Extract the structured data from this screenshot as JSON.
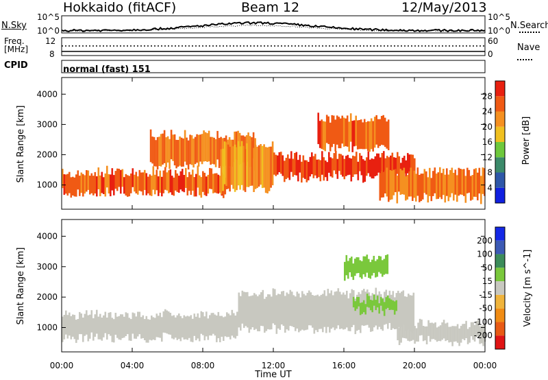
{
  "header": {
    "station": "Hokkaido (fitACF)",
    "beam": "Beam 12",
    "date": "12/May/2013"
  },
  "top_panels": {
    "nsky_label": "N.Sky",
    "nsky_ticks": [
      "10^5",
      "10^0"
    ],
    "nsearch_label": "N.Search",
    "nsearch_ticks": [
      "10^5",
      "10^0"
    ],
    "freq_label": "Freq.",
    "freq_unit": "[MHz]",
    "freq_ticks": [
      "12",
      "8"
    ],
    "nave_label": "Nave",
    "nave_ticks": [
      "60",
      "0"
    ],
    "cpid_label": "CPID",
    "cpid_value": "normal (fast) 151"
  },
  "colors": {
    "power_scale": [
      "#1020e0",
      "#2e57a8",
      "#3c8a6a",
      "#6ec83c",
      "#f0c020",
      "#f59020",
      "#f05a14",
      "#e82010"
    ],
    "velocity_scale": [
      "#1428e6",
      "#3c5ab4",
      "#3c8c5a",
      "#7ac83c",
      "#c8c8c0",
      "#f0b43c",
      "#f08c14",
      "#e85a14",
      "#e01414"
    ],
    "background_velocity": "#c8c8c0"
  },
  "chart_data": [
    {
      "type": "heatmap",
      "panel": "power",
      "ylabel": "Slant Range [km]",
      "y_ticks": [
        "1000",
        "2000",
        "3000",
        "4000"
      ],
      "ylim": [
        200,
        4550
      ],
      "xlim": [
        "00:00",
        "24:00"
      ],
      "colorbar_label": "Power [dB]",
      "colorbar_ticks": [
        "4",
        "8",
        "12",
        "16",
        "20",
        "24",
        "28"
      ],
      "colorbar_range": [
        0,
        32
      ],
      "regions": [
        {
          "from_h": 0.0,
          "to_h": 9.5,
          "range_km": [
            700,
            1500
          ],
          "dB": 26
        },
        {
          "from_h": 5.0,
          "to_h": 11.0,
          "range_km": [
            1600,
            2700
          ],
          "dB": 24
        },
        {
          "from_h": 9.0,
          "to_h": 12.0,
          "range_km": [
            800,
            2400
          ],
          "dB": 22
        },
        {
          "from_h": 12.0,
          "to_h": 20.0,
          "range_km": [
            1200,
            2000
          ],
          "dB": 28
        },
        {
          "from_h": 14.5,
          "to_h": 18.5,
          "range_km": [
            2200,
            3300
          ],
          "dB": 25
        },
        {
          "from_h": 18.0,
          "to_h": 24.0,
          "range_km": [
            500,
            1500
          ],
          "dB": 24
        }
      ]
    },
    {
      "type": "heatmap",
      "panel": "velocity",
      "ylabel": "Slant Range [km]",
      "y_ticks": [
        "1000",
        "2000",
        "3000",
        "4000"
      ],
      "ylim": [
        200,
        4550
      ],
      "xlabel": "Time UT",
      "x_ticks": [
        "00:00",
        "04:00",
        "08:00",
        "12:00",
        "16:00",
        "20:00",
        "00:00"
      ],
      "colorbar_label": "Velocity [m s^-1]",
      "colorbar_ticks": [
        "200",
        "100",
        "50",
        "15",
        "-15",
        "-50",
        "-100",
        "-200"
      ],
      "regions": [
        {
          "from_h": 0.0,
          "to_h": 10.0,
          "range_km": [
            600,
            1500
          ],
          "velocity": 0
        },
        {
          "from_h": 10.0,
          "to_h": 20.0,
          "range_km": [
            900,
            2200
          ],
          "velocity": 0
        },
        {
          "from_h": 16.0,
          "to_h": 18.5,
          "range_km": [
            2600,
            3300
          ],
          "velocity": 35
        },
        {
          "from_h": 16.5,
          "to_h": 19.0,
          "range_km": [
            1500,
            2000
          ],
          "velocity": 35
        },
        {
          "from_h": 19.0,
          "to_h": 24.0,
          "range_km": [
            500,
            1200
          ],
          "velocity": 0
        }
      ]
    }
  ]
}
